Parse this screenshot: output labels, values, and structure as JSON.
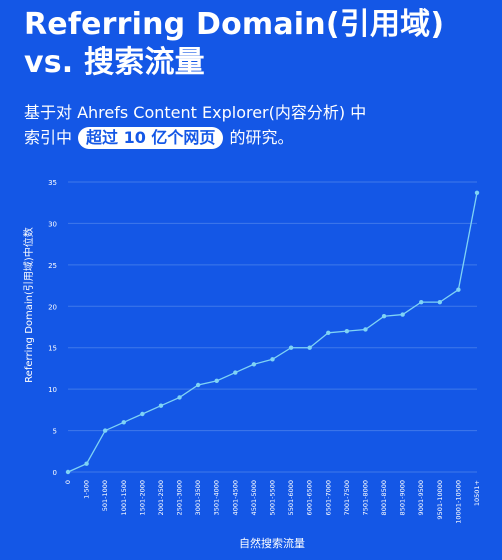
{
  "header": {
    "title_line1": "Referring Domain(引用域)",
    "title_line2": "vs. 搜索流量",
    "subtitle_line1": "基于对 Ahrefs Content Explorer(内容分析) 中",
    "subtitle_pre": "索引中",
    "subtitle_highlight": "超过 10 亿个网页",
    "subtitle_post": "的研究。"
  },
  "colors": {
    "background": "#1457e6",
    "line": "#7fd3f5",
    "grid": "#3f78ea",
    "text": "#ffffff"
  },
  "chart_data": {
    "type": "line",
    "title": "",
    "xlabel": "自然搜索流量",
    "ylabel": "Referring Domain(引用域)中位数",
    "ylim": [
      0,
      35
    ],
    "yticks": [
      0,
      5,
      10,
      15,
      20,
      25,
      30,
      35
    ],
    "grid": true,
    "categories": [
      "0",
      "1-500",
      "501-1000",
      "1001-1500",
      "1501-2000",
      "2001-2500",
      "2501-3000",
      "3001-3500",
      "3501-4000",
      "4001-4500",
      "4501-5000",
      "5001-5500",
      "5501-6000",
      "6001-6500",
      "6501-7000",
      "7001-7500",
      "7501-8000",
      "8001-8500",
      "8501-9000",
      "9001-9500",
      "9501-10000",
      "10001-10500",
      "10501+"
    ],
    "series": [
      {
        "values": [
          0,
          1,
          5,
          6,
          7,
          8,
          9,
          10.5,
          11,
          12,
          13,
          13.6,
          15,
          15,
          16.8,
          17,
          17.2,
          18.8,
          19,
          20.5,
          20.5,
          22,
          33.7
        ]
      }
    ]
  }
}
